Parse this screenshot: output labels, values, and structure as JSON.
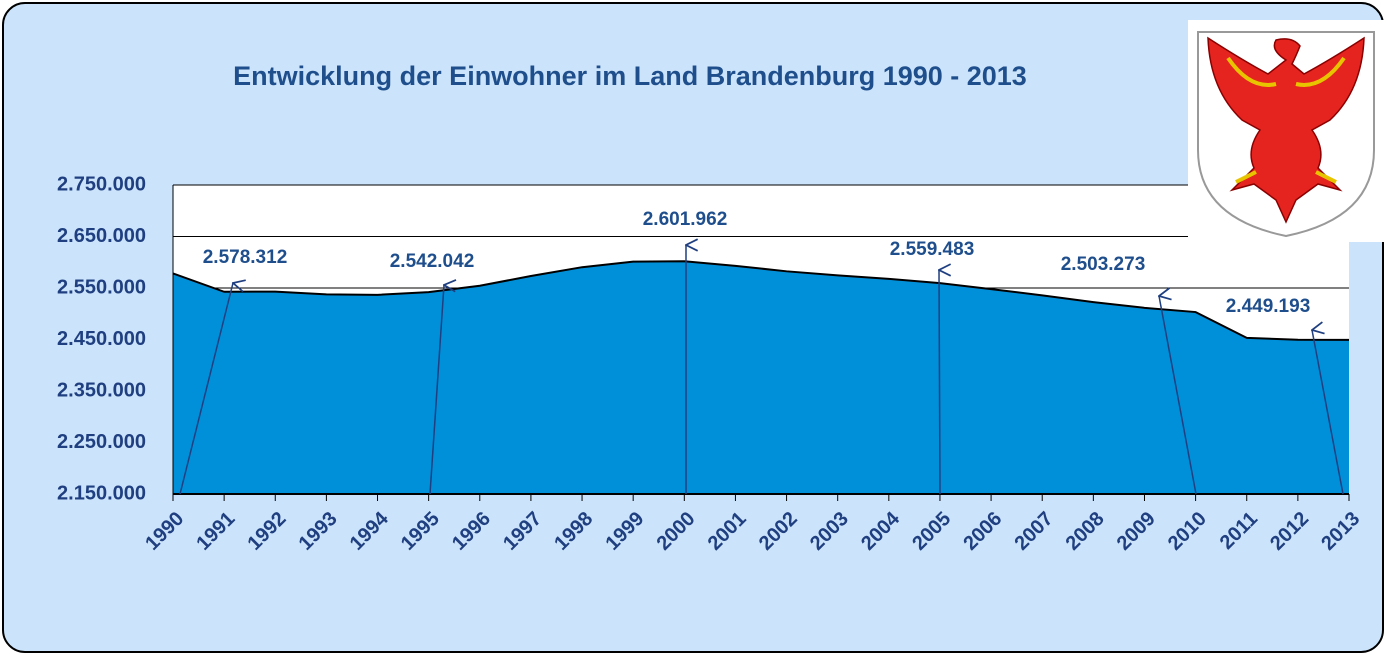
{
  "chart_data": {
    "type": "area",
    "title": "Entwicklung der Einwohner im Land Brandenburg 1990 - 2013",
    "categories": [
      "1990",
      "1991",
      "1992",
      "1993",
      "1994",
      "1995",
      "1996",
      "1997",
      "1998",
      "1999",
      "2000",
      "2001",
      "2002",
      "2003",
      "2004",
      "2005",
      "2006",
      "2007",
      "2008",
      "2009",
      "2010",
      "2011",
      "2012",
      "2013"
    ],
    "values": [
      2578312,
      2542700,
      2543000,
      2537700,
      2536700,
      2542042,
      2554400,
      2573300,
      2590400,
      2601200,
      2601962,
      2593000,
      2582400,
      2574500,
      2567700,
      2559483,
      2547800,
      2535700,
      2522500,
      2511500,
      2503273,
      2453200,
      2449500,
      2449193
    ],
    "value_labels": [
      "2.578.312",
      null,
      null,
      null,
      null,
      "2.542.042",
      null,
      null,
      null,
      null,
      "2.601.962",
      null,
      null,
      null,
      null,
      "2.559.483",
      null,
      null,
      null,
      null,
      "2.503.273",
      null,
      null,
      "2.449.193"
    ],
    "color": "#0090da",
    "ylim": [
      2150000,
      2750000
    ],
    "yticks": [
      {
        "value": 2150000,
        "label": "2.150.000"
      },
      {
        "value": 2250000,
        "label": "2.250.000"
      },
      {
        "value": 2350000,
        "label": "2.350.000"
      },
      {
        "value": 2450000,
        "label": "2.450.000"
      },
      {
        "value": 2550000,
        "label": "2.550.000"
      },
      {
        "value": 2650000,
        "label": "2.650.000"
      },
      {
        "value": 2750000,
        "label": "2.750.000"
      }
    ],
    "grid": true
  }
}
